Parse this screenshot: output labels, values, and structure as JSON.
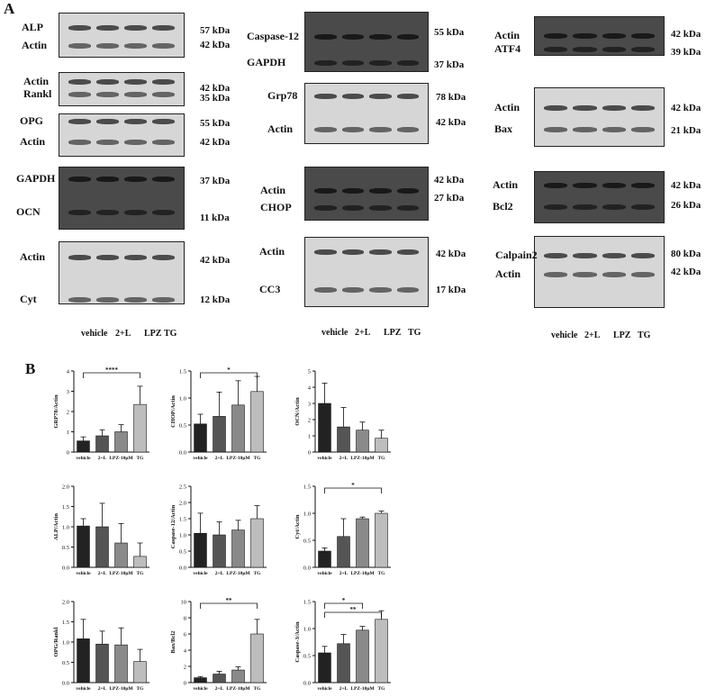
{
  "panels": {
    "a": "A",
    "b": "B"
  },
  "lane_labels": [
    "vehicle",
    "2+L",
    "LPZ",
    "TG"
  ],
  "blots": [
    {
      "labels": [
        "ALP",
        "Actin"
      ],
      "markers": [
        "57 kDa",
        "42 kDa"
      ]
    },
    {
      "labels": [
        "Actin",
        "Rankl"
      ],
      "markers": [
        "42 kDa",
        "35 kDa"
      ]
    },
    {
      "labels": [
        "OPG",
        "Actin"
      ],
      "markers": [
        "55 kDa",
        "42 kDa"
      ]
    },
    {
      "labels": [
        "GAPDH",
        "OCN"
      ],
      "markers": [
        "37 kDa",
        "11 kDa"
      ]
    },
    {
      "labels": [
        "Actin",
        "Cyt"
      ],
      "markers": [
        "42 kDa",
        "12 kDa"
      ]
    },
    {
      "labels": [
        "Caspase-12",
        "GAPDH"
      ],
      "markers": [
        "55 kDa",
        "37 kDa"
      ]
    },
    {
      "labels": [
        "Grp78",
        "Actin"
      ],
      "markers": [
        "78 kDa",
        "42 kDa"
      ]
    },
    {
      "labels": [
        "Actin",
        "CHOP"
      ],
      "markers": [
        "42 kDa",
        "27 kDa"
      ]
    },
    {
      "labels": [
        "Actin",
        "CC3"
      ],
      "markers": [
        "42 kDa",
        "17 kDa"
      ]
    },
    {
      "labels": [
        "Actin",
        "ATF4"
      ],
      "markers": [
        "42 kDa",
        "39 kDa"
      ]
    },
    {
      "labels": [
        "Actin",
        "Bax"
      ],
      "markers": [
        "42 kDa",
        "21 kDa"
      ]
    },
    {
      "labels": [
        "Actin",
        "Bcl2"
      ],
      "markers": [
        "42 kDa",
        "26 kDa"
      ]
    },
    {
      "labels": [
        "Calpain2",
        "Actin"
      ],
      "markers": [
        "80 kDa",
        "42 kDa"
      ]
    }
  ],
  "chart_data": [
    {
      "type": "bar",
      "ylabel": "GRP78/Actin",
      "categories": [
        "vehicle",
        "2+L",
        "LPZ-10μM",
        "TG"
      ],
      "values": [
        0.55,
        0.8,
        1.0,
        2.35
      ],
      "errors": [
        0.2,
        0.3,
        0.35,
        0.9
      ],
      "ylim": [
        0,
        4
      ],
      "yticks": [
        "0",
        "1",
        "2",
        "3",
        "4"
      ],
      "significance": [
        {
          "from": 0,
          "to": 3,
          "label": "****"
        }
      ]
    },
    {
      "type": "bar",
      "ylabel": "CHOP/Actin",
      "categories": [
        "vehicle",
        "2+L",
        "LPZ-10μM",
        "TG"
      ],
      "values": [
        0.52,
        0.66,
        0.87,
        1.12
      ],
      "errors": [
        0.18,
        0.45,
        0.45,
        0.28
      ],
      "ylim": [
        0,
        1.5
      ],
      "yticks": [
        "0.0",
        "0.5",
        "1.0",
        "1.5"
      ],
      "significance": [
        {
          "from": 0,
          "to": 3,
          "label": "*"
        }
      ]
    },
    {
      "type": "bar",
      "ylabel": "OCN/Actin",
      "categories": [
        "vehicle",
        "2+L",
        "LPZ-10μM",
        "TG"
      ],
      "values": [
        3.0,
        1.55,
        1.35,
        0.85
      ],
      "errors": [
        1.25,
        1.2,
        0.5,
        0.5
      ],
      "ylim": [
        0,
        5
      ],
      "yticks": [
        "0",
        "1",
        "2",
        "3",
        "4",
        "5"
      ],
      "significance": []
    },
    {
      "type": "bar",
      "ylabel": "ALP/Actin",
      "categories": [
        "vehicle",
        "2+L",
        "LPZ-10μM",
        "TG"
      ],
      "values": [
        1.02,
        1.0,
        0.6,
        0.27
      ],
      "errors": [
        0.18,
        0.58,
        0.48,
        0.33
      ],
      "ylim": [
        0,
        2.0
      ],
      "yticks": [
        "0.0",
        "0.5",
        "1.0",
        "1.5",
        "2.0"
      ],
      "significance": []
    },
    {
      "type": "bar",
      "ylabel": "Caspase-12/Actin",
      "categories": [
        "vehicle",
        "2+L",
        "LPZ-10μM",
        "TG"
      ],
      "values": [
        1.05,
        1.0,
        1.15,
        1.5
      ],
      "errors": [
        0.62,
        0.4,
        0.3,
        0.4
      ],
      "ylim": [
        0,
        2.5
      ],
      "yticks": [
        "0.0",
        "0.5",
        "1.0",
        "1.5",
        "2.0",
        "2.5"
      ],
      "significance": []
    },
    {
      "type": "bar",
      "ylabel": "Cyt/Actin",
      "categories": [
        "vehicle",
        "2+L",
        "LPZ-10μM",
        "TG"
      ],
      "values": [
        0.3,
        0.57,
        0.9,
        1.0
      ],
      "errors": [
        0.06,
        0.33,
        0.03,
        0.04
      ],
      "ylim": [
        0,
        1.5
      ],
      "yticks": [
        "0.0",
        "0.5",
        "1.0",
        "1.5"
      ],
      "significance": [
        {
          "from": 0,
          "to": 3,
          "label": "*"
        }
      ]
    },
    {
      "type": "bar",
      "ylabel": "OPG/Rankl",
      "categories": [
        "vehicle",
        "2+L",
        "LPZ-10μM",
        "TG"
      ],
      "values": [
        1.08,
        0.95,
        0.93,
        0.52
      ],
      "errors": [
        0.48,
        0.32,
        0.42,
        0.3
      ],
      "ylim": [
        0,
        2.0
      ],
      "yticks": [
        "0.0",
        "0.5",
        "1.0",
        "1.5",
        "2.0"
      ],
      "significance": []
    },
    {
      "type": "bar",
      "ylabel": "Bax/Bcl2",
      "categories": [
        "vehicle",
        "2+L",
        "LPZ-10μM",
        "TG"
      ],
      "values": [
        0.6,
        1.05,
        1.55,
        6.0
      ],
      "errors": [
        0.15,
        0.35,
        0.4,
        1.8
      ],
      "ylim": [
        0,
        10
      ],
      "yticks": [
        "0",
        "2",
        "4",
        "6",
        "8",
        "10"
      ],
      "significance": [
        {
          "from": 0,
          "to": 3,
          "label": "**"
        }
      ]
    },
    {
      "type": "bar",
      "ylabel": "Caspase-3/Actin",
      "categories": [
        "vehicle",
        "2+L",
        "LPZ-10μM",
        "TG"
      ],
      "values": [
        0.55,
        0.72,
        0.97,
        1.17
      ],
      "errors": [
        0.12,
        0.17,
        0.07,
        0.16
      ],
      "ylim": [
        0,
        1.5
      ],
      "yticks": [
        "0.0",
        "0.5",
        "1.0",
        "1.5"
      ],
      "significance": [
        {
          "from": 0,
          "to": 2,
          "label": "*"
        },
        {
          "from": 0,
          "to": 3,
          "label": "**"
        }
      ]
    }
  ],
  "colors": {
    "bar_fills": [
      "#222222",
      "#555555",
      "#8a8a8a",
      "#bdbdbd"
    ]
  }
}
